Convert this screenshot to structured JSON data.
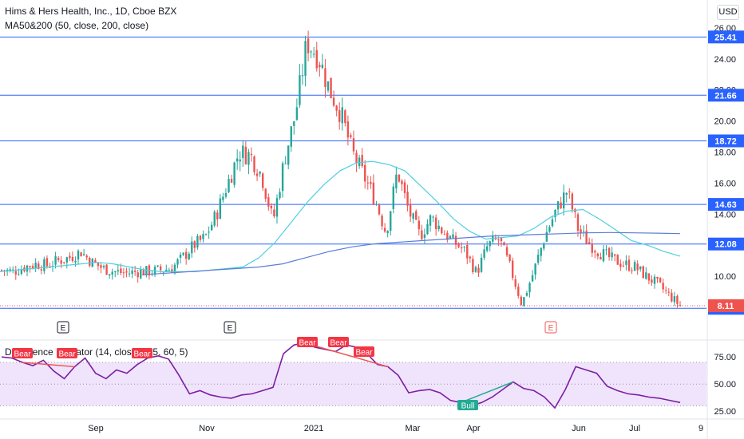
{
  "header": {
    "title": "Hims & Hers Health, Inc., 1D, Cboe BZX",
    "ma_legend": "MA50&200 (50, close, 200, close)",
    "currency": "USD"
  },
  "indicator": {
    "title": "Divergence Indicator (14, close, 5, 5, 60, 5)"
  },
  "colors": {
    "up": "#26a69a",
    "down": "#ef5350",
    "hline": "#2962ff",
    "ma50": "#4dd0e1",
    "ma200": "#5b7fd6",
    "rsi": "#7b1fa2",
    "rsi_band": "#e9d7fb",
    "bear_label": "#f23645",
    "bull_label": "#22ab94"
  },
  "chart_data": [
    {
      "type": "candlestick",
      "name": "price",
      "x_labels": [
        "Sep",
        "Nov",
        "2021",
        "Mar",
        "Apr",
        "Jun",
        "Jul",
        "9"
      ],
      "y_ticks": [
        26.0,
        24.0,
        22.0,
        20.0,
        18.0,
        16.0,
        14.0,
        12.0,
        10.0
      ],
      "ylim": [
        7.8,
        26.3
      ],
      "horizontal_levels": [
        25.41,
        21.66,
        18.72,
        14.63,
        12.08,
        7.94
      ],
      "last_price": 8.11,
      "earnings_markers": [
        {
          "label": "E",
          "position": "Sep"
        },
        {
          "label": "E",
          "position": "Nov"
        },
        {
          "label": "E",
          "position": "May",
          "highlight": true
        }
      ],
      "close_path": [
        10.4,
        10.3,
        10.6,
        10.8,
        10.7,
        11.0,
        11.2,
        11.6,
        10.9,
        10.5,
        10.3,
        10.2,
        10.3,
        10.3,
        10.4,
        10.5,
        11.2,
        12.0,
        12.5,
        14.0,
        16.0,
        18.0,
        17.8,
        16.5,
        13.5,
        17.5,
        20.5,
        25.1,
        24.2,
        22.0,
        20.5,
        18.0,
        16.5,
        15.0,
        12.8,
        16.8,
        14.2,
        12.6,
        13.8,
        12.9,
        12.2,
        11.6,
        10.2,
        12.0,
        12.4,
        10.5,
        8.2,
        10.2,
        12.5,
        14.2,
        15.5,
        13.0,
        12.1,
        11.5,
        11.1,
        10.8,
        10.6,
        10.0,
        9.5,
        8.8,
        8.11
      ],
      "ma50": [
        10.3,
        10.4,
        10.5,
        10.6,
        10.7,
        10.8,
        10.9,
        10.8,
        10.6,
        10.4,
        10.3,
        10.3,
        10.3,
        10.4,
        10.5,
        10.6,
        11.2,
        12.2,
        13.5,
        14.8,
        15.9,
        16.8,
        17.3,
        17.4,
        17.2,
        16.8,
        15.8,
        14.8,
        13.7,
        12.9,
        12.4,
        12.5,
        12.6,
        13.1,
        13.8,
        14.2,
        14.3,
        13.7,
        13.0,
        12.3,
        12.0,
        11.6,
        11.3
      ],
      "ma200": [
        10.1,
        10.2,
        10.3,
        10.4,
        10.5,
        10.6,
        10.8,
        11.2,
        11.6,
        11.9,
        12.1,
        12.2,
        12.3,
        12.4,
        12.5,
        12.6,
        12.65,
        12.7,
        12.75,
        12.8,
        12.82,
        12.8,
        12.78,
        12.75
      ]
    },
    {
      "type": "line",
      "name": "Divergence Indicator",
      "y_ticks": [
        75.0,
        50.0,
        25.0
      ],
      "ylim": [
        20,
        95
      ],
      "bands": {
        "upper": 70,
        "middle": 50,
        "lower": 30
      },
      "values": [
        75,
        74,
        70,
        67,
        72,
        62,
        55,
        66,
        74,
        60,
        55,
        63,
        60,
        68,
        74,
        76,
        73,
        58,
        41,
        44,
        40,
        38,
        37,
        40,
        41,
        44,
        47,
        78,
        86,
        88,
        84,
        82,
        80,
        86,
        84,
        78,
        68,
        66,
        58,
        42,
        44,
        45,
        42,
        35,
        33,
        30,
        33,
        38,
        45,
        52,
        46,
        44,
        38,
        28,
        45,
        66,
        63,
        60,
        48,
        44,
        41,
        40,
        38,
        37,
        35,
        33
      ],
      "signals": [
        {
          "label": "Bear",
          "kind": "bear"
        },
        {
          "label": "Bear",
          "kind": "bear"
        },
        {
          "label": "Bear",
          "kind": "bear"
        },
        {
          "label": "Bear",
          "kind": "bear"
        },
        {
          "label": "Bear",
          "kind": "bear"
        },
        {
          "label": "Bear",
          "kind": "bear"
        },
        {
          "label": "Bull",
          "kind": "bull"
        }
      ]
    }
  ]
}
